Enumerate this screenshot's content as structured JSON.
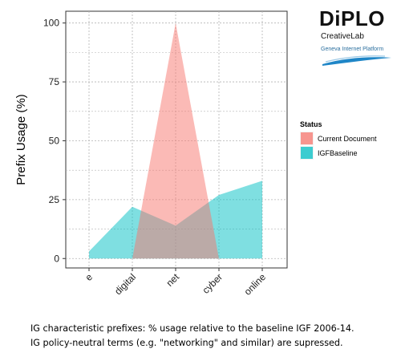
{
  "chart_data": {
    "type": "area",
    "categories": [
      "e",
      "digital",
      "net",
      "cyber",
      "online"
    ],
    "series": [
      {
        "name": "Current Document",
        "values": [
          0,
          0,
          100,
          0,
          0
        ],
        "color": "#F8766D"
      },
      {
        "name": "IGFBaseline",
        "values": [
          3,
          22,
          14,
          27,
          33
        ],
        "color": "#00BFC4"
      }
    ],
    "xlabel": "",
    "ylabel": "Prefix Usage (%)",
    "ylim": [
      -4,
      105
    ],
    "yticks": [
      0,
      25,
      50,
      75,
      100
    ],
    "grid": true,
    "legend": {
      "title": "Status",
      "position": "right"
    }
  },
  "logo": {
    "name": "DiPLO",
    "subtitle": "CreativeLab",
    "tagline": "Geneva Internet Platform"
  },
  "caption": {
    "line1": "IG characteristic prefixes: % usage relative to the baseline IGF 2006-14.",
    "line2": "IG policy-neutral terms (e.g. \"networking\" and similar) are supressed."
  }
}
